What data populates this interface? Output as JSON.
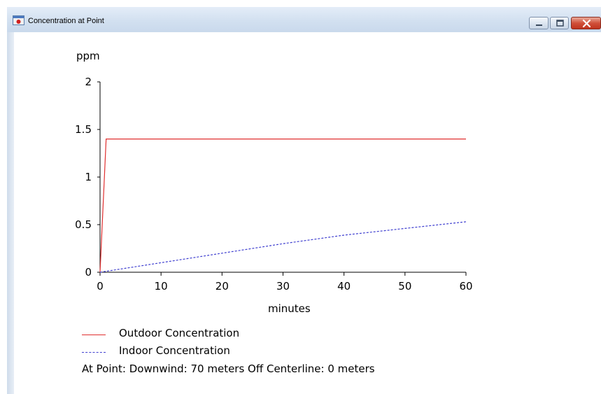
{
  "window": {
    "title": "Concentration at Point",
    "icon": "app-icon",
    "controls": [
      "minimize-icon",
      "maximize-icon",
      "close-icon"
    ]
  },
  "chart_data": {
    "type": "line",
    "title": "",
    "xlabel": "minutes",
    "ylabel": "ppm",
    "xlim": [
      0,
      60
    ],
    "ylim": [
      0,
      2
    ],
    "xticks": [
      0,
      10,
      20,
      30,
      40,
      50,
      60
    ],
    "yticks": [
      0,
      0.5,
      1,
      1.5,
      2
    ],
    "xtick_labels": [
      "0",
      "10",
      "20",
      "30",
      "40",
      "50",
      "60"
    ],
    "ytick_labels": [
      "0",
      "0.5",
      "1",
      "1.5",
      "2"
    ],
    "grid": false,
    "legend": "bottom",
    "series": [
      {
        "name": "Outdoor Concentration",
        "color": "#e03030",
        "style": "solid",
        "x": [
          0,
          1,
          60
        ],
        "y": [
          0,
          1.4,
          1.4
        ]
      },
      {
        "name": "Indoor Concentration",
        "color": "#4040d0",
        "style": "dotted",
        "x": [
          0,
          10,
          20,
          30,
          40,
          50,
          60
        ],
        "y": [
          0,
          0.1,
          0.2,
          0.3,
          0.39,
          0.46,
          0.53
        ]
      }
    ]
  },
  "legend": {
    "outdoor": "Outdoor Concentration",
    "indoor": "Indoor Concentration"
  },
  "status": {
    "text": "At Point:   Downwind: 70 meters   Off Centerline: 0 meters"
  }
}
